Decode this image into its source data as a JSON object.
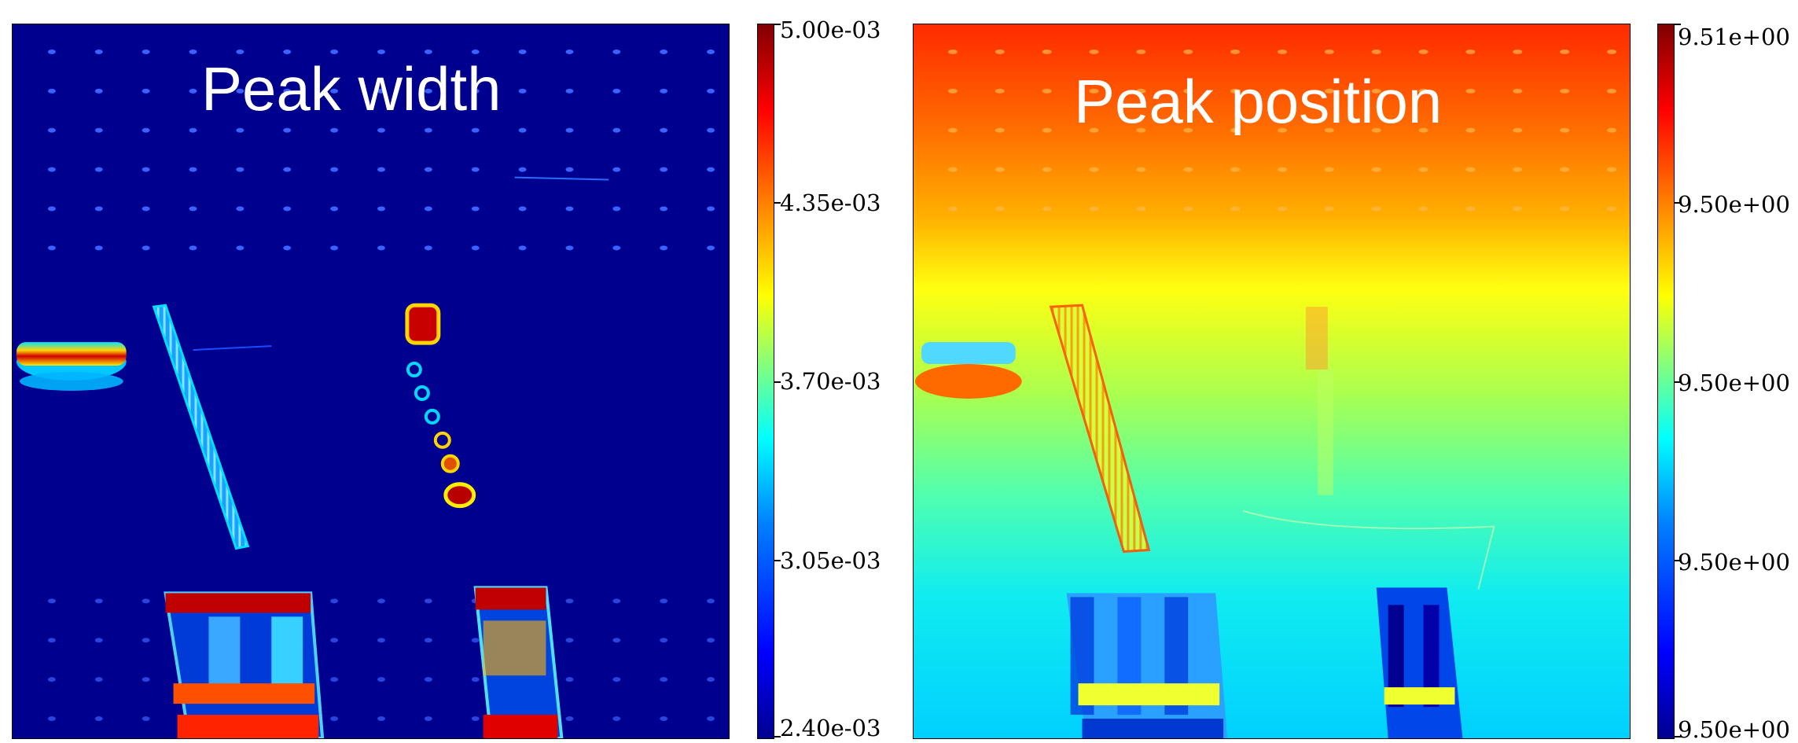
{
  "panels": [
    {
      "title": "Peak width",
      "colorbar_ticks": [
        "5.00e-03",
        "4.35e-03",
        "3.70e-03",
        "3.05e-03",
        "2.40e-03"
      ]
    },
    {
      "title": "Peak position",
      "colorbar_ticks": [
        "9.51e+00",
        "9.50e+00",
        "9.50e+00",
        "9.50e+00",
        "9.50e+00"
      ]
    }
  ],
  "colormap": "jet"
}
